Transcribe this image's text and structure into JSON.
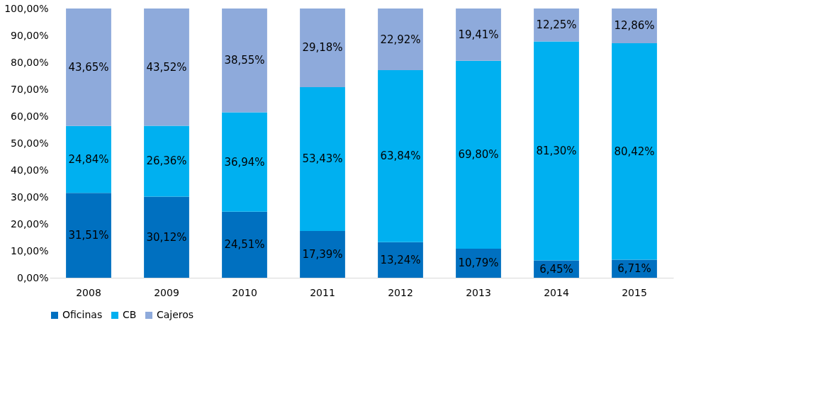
{
  "chart_data": {
    "type": "bar",
    "stacked": true,
    "categories": [
      "2008",
      "2009",
      "2010",
      "2011",
      "2012",
      "2013",
      "2014",
      "2015"
    ],
    "series": [
      {
        "name": "Oficinas",
        "color": "#0070c0",
        "values": [
          31.51,
          30.12,
          24.51,
          17.39,
          13.24,
          10.79,
          6.45,
          6.71
        ],
        "value_labels": [
          "31,51%",
          "30,12%",
          "24,51%",
          "17,39%",
          "13,24%",
          "10,79%",
          "6,45%",
          "6,71%"
        ]
      },
      {
        "name": "CB",
        "color": "#00b0f0",
        "values": [
          24.84,
          26.36,
          36.94,
          53.43,
          63.84,
          69.8,
          81.3,
          80.42
        ],
        "value_labels": [
          "24,84%",
          "26,36%",
          "36,94%",
          "53,43%",
          "63,84%",
          "69,80%",
          "81,30%",
          "80,42%"
        ]
      },
      {
        "name": "Cajeros",
        "color": "#8eaadb",
        "values": [
          43.65,
          43.52,
          38.55,
          29.18,
          22.92,
          19.41,
          12.25,
          12.86
        ],
        "value_labels": [
          "43,65%",
          "43,52%",
          "38,55%",
          "29,18%",
          "22,92%",
          "19,41%",
          "12,25%",
          "12,86%"
        ]
      }
    ],
    "ylim": [
      0,
      100
    ],
    "yticks": [
      {
        "value": 0,
        "label": "0,00%"
      },
      {
        "value": 10,
        "label": "10,00%"
      },
      {
        "value": 20,
        "label": "20,00%"
      },
      {
        "value": 30,
        "label": "30,00%"
      },
      {
        "value": 40,
        "label": "40,00%"
      },
      {
        "value": 50,
        "label": "50,00%"
      },
      {
        "value": 60,
        "label": "60,00%"
      },
      {
        "value": 70,
        "label": "70,00%"
      },
      {
        "value": 80,
        "label": "80,00%"
      },
      {
        "value": 90,
        "label": "90,00%"
      },
      {
        "value": 100,
        "label": "100,00%"
      }
    ],
    "grid": false,
    "legend": "bottom"
  }
}
